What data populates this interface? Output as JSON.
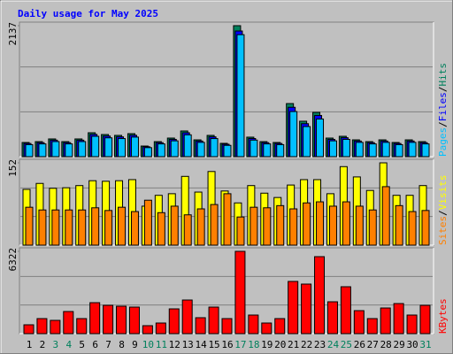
{
  "chart_data": [
    {
      "type": "bar",
      "title": "Daily usage for May 2025",
      "ylim": [
        0,
        2137
      ],
      "yticks": [
        2137
      ],
      "grid": true,
      "legend_separator": "/",
      "series": [
        {
          "name": "Hits",
          "color": "#00805c",
          "values": [
            231,
            245,
            289,
            245,
            289,
            390,
            361,
            347,
            375,
            173,
            245,
            303,
            419,
            274,
            347,
            217,
            2137,
            318,
            245,
            231,
            866,
            578,
            722,
            303,
            332,
            274,
            245,
            274,
            231,
            274,
            245
          ]
        },
        {
          "name": "Files",
          "color": "#0000ff",
          "values": [
            215,
            228,
            269,
            228,
            269,
            363,
            336,
            323,
            349,
            161,
            228,
            282,
            390,
            255,
            323,
            202,
            2050,
            296,
            228,
            215,
            805,
            538,
            672,
            282,
            309,
            255,
            228,
            255,
            215,
            255,
            228
          ]
        },
        {
          "name": "Pages",
          "color": "#00c0ff",
          "values": [
            196,
            208,
            246,
            208,
            246,
            332,
            307,
            295,
            319,
            147,
            208,
            258,
            356,
            233,
            295,
            184,
            1990,
            270,
            208,
            196,
            736,
            491,
            614,
            258,
            282,
            233,
            208,
            233,
            196,
            233,
            208
          ]
        }
      ]
    },
    {
      "type": "bar",
      "ylim": [
        0,
        152
      ],
      "yticks": [
        152
      ],
      "grid": true,
      "legend_separator": "/",
      "series": [
        {
          "name": "Visits",
          "color": "#ffff00",
          "values": [
            103,
            114,
            105,
            106,
            110,
            119,
            118,
            119,
            121,
            72,
            92,
            95,
            127,
            98,
            136,
            100,
            78,
            110,
            96,
            88,
            111,
            121,
            121,
            95,
            145,
            126,
            101,
            152,
            92,
            92,
            110
          ]
        },
        {
          "name": "Sites",
          "color": "#ff8000",
          "values": [
            70,
            65,
            65,
            65,
            65,
            69,
            64,
            70,
            62,
            83,
            60,
            72,
            56,
            67,
            75,
            95,
            52,
            70,
            69,
            73,
            67,
            78,
            80,
            72,
            80,
            72,
            65,
            108,
            73,
            62,
            64
          ]
        }
      ]
    },
    {
      "type": "bar",
      "ylim": [
        0,
        6322
      ],
      "yticks": [
        6322
      ],
      "grid": true,
      "categories": [
        "1",
        "2",
        "3",
        "4",
        "5",
        "6",
        "7",
        "8",
        "9",
        "10",
        "11",
        "12",
        "13",
        "14",
        "15",
        "16",
        "17",
        "18",
        "19",
        "20",
        "21",
        "22",
        "23",
        "24",
        "25",
        "26",
        "27",
        "28",
        "29",
        "30",
        "31"
      ],
      "label_colors": [
        "#000000",
        "#000000",
        "#00805c",
        "#00805c",
        "#000000",
        "#000000",
        "#000000",
        "#000000",
        "#000000",
        "#00805c",
        "#00805c",
        "#000000",
        "#000000",
        "#000000",
        "#000000",
        "#000000",
        "#00805c",
        "#00805c",
        "#000000",
        "#000000",
        "#000000",
        "#000000",
        "#000000",
        "#00805c",
        "#00805c",
        "#000000",
        "#000000",
        "#000000",
        "#000000",
        "#000000",
        "#00805c"
      ],
      "series": [
        {
          "name": "KBytes",
          "color": "#ff0000",
          "values": [
            680,
            1156,
            1020,
            1700,
            1156,
            2379,
            2175,
            2107,
            2039,
            612,
            816,
            1903,
            2583,
            1224,
            2039,
            1156,
            6322,
            1428,
            816,
            1156,
            4011,
            3807,
            5914,
            2447,
            3603,
            1767,
            1156,
            1971,
            2311,
            1428,
            2175
          ]
        }
      ]
    }
  ]
}
